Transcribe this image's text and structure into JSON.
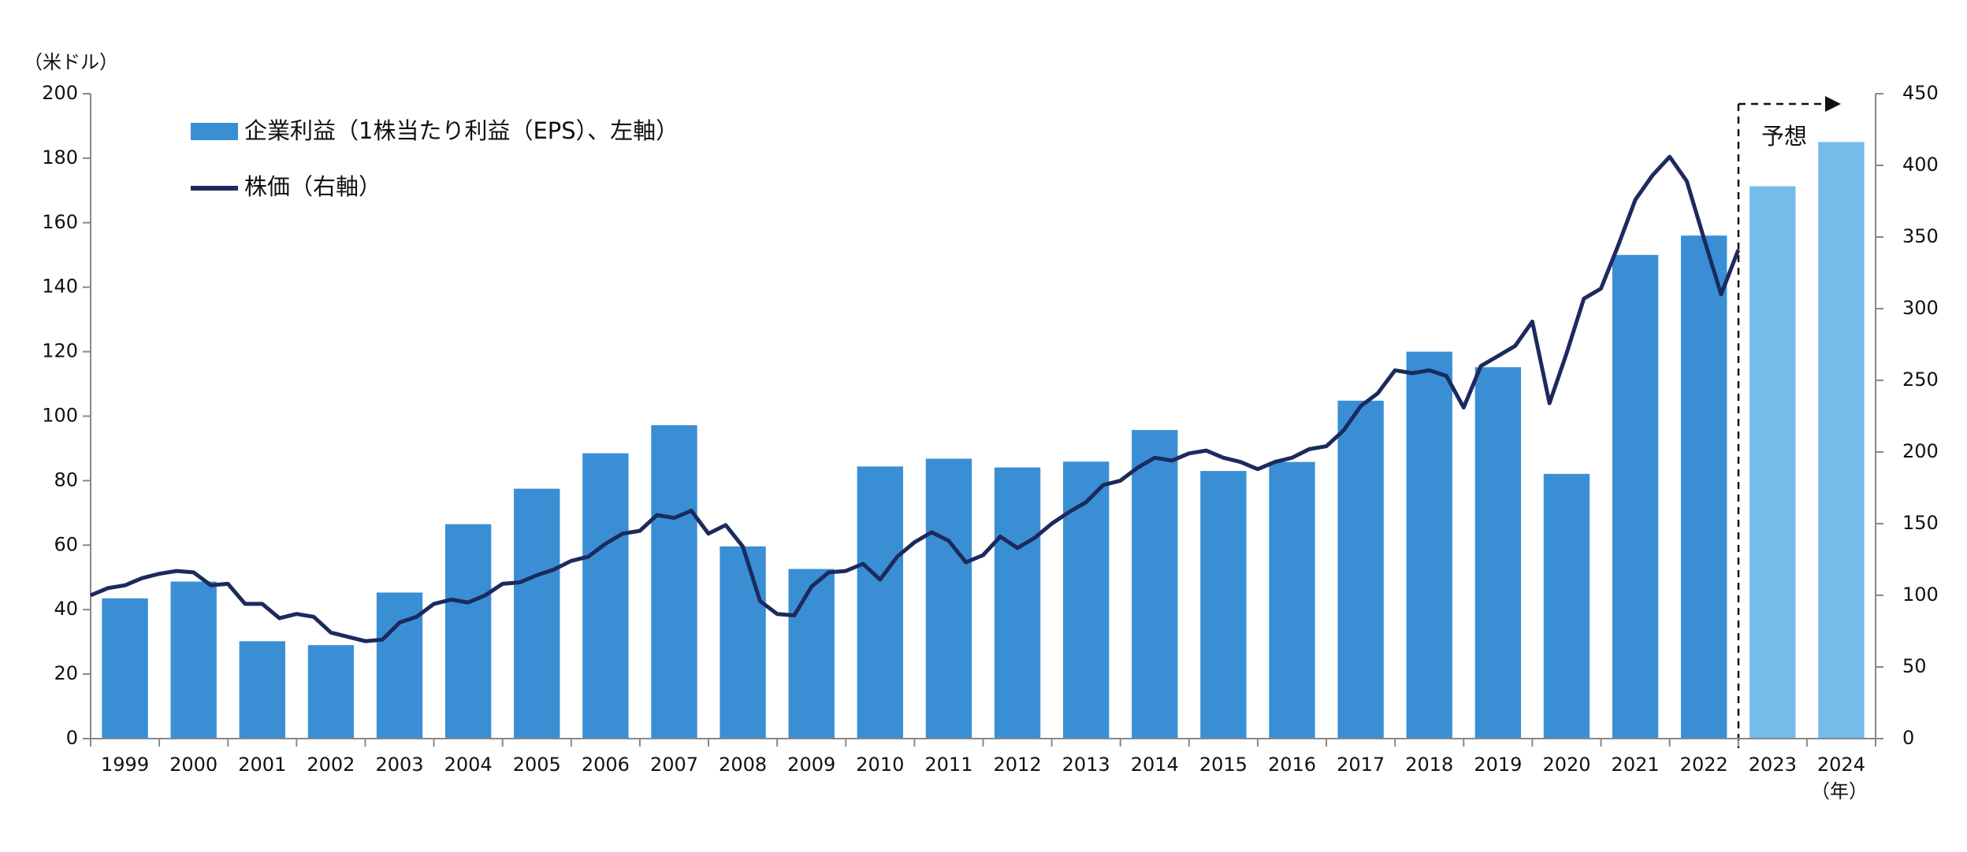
{
  "chart_data": {
    "type": "bar",
    "y_unit_label": "（米ドル）",
    "x_unit_label": "（年）",
    "forecast_label": "予想",
    "categories": [
      "1999",
      "2000",
      "2001",
      "2002",
      "2003",
      "2004",
      "2005",
      "2006",
      "2007",
      "2008",
      "2009",
      "2010",
      "2011",
      "2012",
      "2013",
      "2014",
      "2015",
      "2016",
      "2017",
      "2018",
      "2019",
      "2020",
      "2021",
      "2022",
      "2023",
      "2024"
    ],
    "xlim": [
      1999,
      2025
    ],
    "ylim": [
      0,
      200
    ],
    "yticks": [
      0,
      20,
      40,
      60,
      80,
      100,
      120,
      140,
      160,
      180,
      200
    ],
    "y2lim": [
      0,
      450
    ],
    "y2ticks": [
      0,
      50,
      100,
      150,
      200,
      250,
      300,
      350,
      400,
      450
    ],
    "series": [
      {
        "name": "企業利益（1株当たり利益（EPS）、左軸）",
        "type": "bar",
        "color": "#3a8fd4",
        "colors": [
          "#3a8fd4",
          "#3a8fd4",
          "#3a8fd4",
          "#3a8fd4",
          "#3a8fd4",
          "#3a8fd4",
          "#3a8fd4",
          "#3a8fd4",
          "#3a8fd4",
          "#3a8fd4",
          "#3a8fd4",
          "#3a8fd4",
          "#3a8fd4",
          "#3a8fd4",
          "#3a8fd4",
          "#3a8fd4",
          "#3a8fd4",
          "#3a8fd4",
          "#3a8fd4",
          "#3a8fd4",
          "#3a8fd4",
          "#3a8fd4",
          "#3a8fd4",
          "#3a8fd4",
          "#74bce9",
          "#74bce9"
        ],
        "values": [
          43.5,
          48.7,
          30.2,
          29.0,
          45.3,
          66.5,
          77.5,
          88.5,
          97.2,
          59.6,
          52.6,
          84.4,
          86.8,
          84.1,
          85.9,
          95.7,
          83.0,
          85.8,
          104.8,
          120.0,
          115.2,
          82.1,
          150.0,
          156.0,
          171.3,
          185.0
        ]
      },
      {
        "name": "株価（右軸）",
        "type": "line",
        "axis": "y2",
        "color": "#1c2a5e",
        "x": [
          1999,
          1999.25,
          1999.5,
          1999.75,
          2000,
          2000.25,
          2000.5,
          2000.75,
          2001,
          2001.25,
          2001.5,
          2001.75,
          2002,
          2002.25,
          2002.5,
          2002.75,
          2003,
          2003.25,
          2003.5,
          2003.75,
          2004,
          2004.25,
          2004.5,
          2004.75,
          2005,
          2005.25,
          2005.5,
          2005.75,
          2006,
          2006.25,
          2006.5,
          2006.75,
          2007,
          2007.25,
          2007.5,
          2007.75,
          2008,
          2008.25,
          2008.5,
          2008.75,
          2009,
          2009.25,
          2009.5,
          2009.75,
          2010,
          2010.25,
          2010.5,
          2010.75,
          2011,
          2011.25,
          2011.5,
          2011.75,
          2012,
          2012.25,
          2012.5,
          2012.75,
          2013,
          2013.25,
          2013.5,
          2013.75,
          2014,
          2014.25,
          2014.5,
          2014.75,
          2015,
          2015.25,
          2015.5,
          2015.75,
          2016,
          2016.25,
          2016.5,
          2016.75,
          2017,
          2017.25,
          2017.5,
          2017.75,
          2018,
          2018.25,
          2018.5,
          2018.75,
          2019,
          2019.25,
          2019.5,
          2019.75,
          2020,
          2020.25,
          2020.5,
          2020.75,
          2021,
          2021.25,
          2021.5,
          2021.75,
          2022,
          2022.25,
          2022.5,
          2022.75,
          2023
        ],
        "values": [
          100,
          105,
          107,
          112,
          115,
          117,
          116,
          107,
          108,
          94,
          94,
          84,
          87,
          85,
          74,
          71,
          68,
          69,
          81,
          85,
          94,
          97,
          95,
          100,
          108,
          109,
          114,
          118,
          124,
          127,
          136,
          143,
          145,
          156,
          154,
          159,
          143,
          149,
          134,
          96,
          87,
          86,
          106,
          116,
          117,
          122,
          111,
          127,
          137,
          144,
          138,
          123,
          128,
          141,
          133,
          140,
          150,
          158,
          165,
          177,
          180,
          189,
          196,
          194,
          199,
          201,
          196,
          193,
          188,
          193,
          196,
          202,
          204,
          215,
          232,
          241,
          257,
          255,
          257,
          253,
          231,
          260,
          267,
          274,
          291,
          234,
          269,
          307,
          314,
          344,
          376,
          393,
          406,
          389,
          349,
          310,
          341
        ]
      }
    ]
  }
}
